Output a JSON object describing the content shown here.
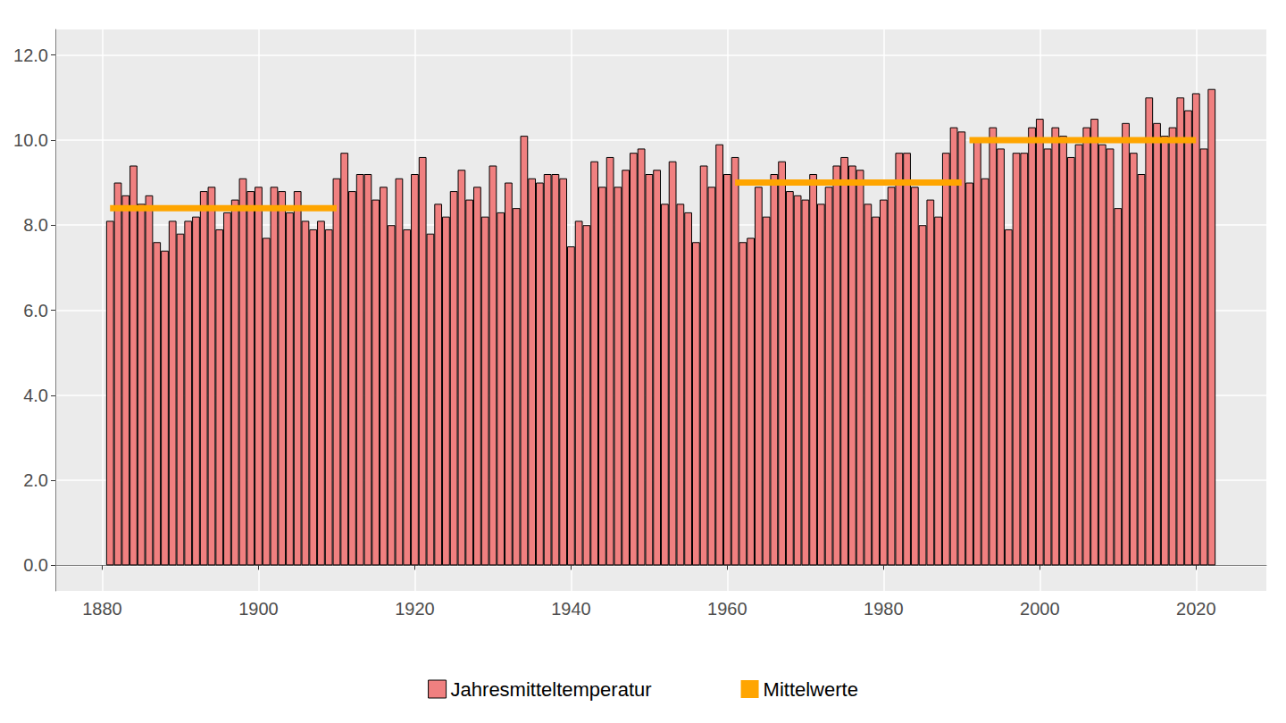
{
  "chart_data": {
    "type": "bar",
    "x": [
      1881,
      1882,
      1883,
      1884,
      1885,
      1886,
      1887,
      1888,
      1889,
      1890,
      1891,
      1892,
      1893,
      1894,
      1895,
      1896,
      1897,
      1898,
      1899,
      1900,
      1901,
      1902,
      1903,
      1904,
      1905,
      1906,
      1907,
      1908,
      1909,
      1910,
      1911,
      1912,
      1913,
      1914,
      1915,
      1916,
      1917,
      1918,
      1919,
      1920,
      1921,
      1922,
      1923,
      1924,
      1925,
      1926,
      1927,
      1928,
      1929,
      1930,
      1931,
      1932,
      1933,
      1934,
      1935,
      1936,
      1937,
      1938,
      1939,
      1940,
      1941,
      1942,
      1943,
      1944,
      1945,
      1946,
      1947,
      1948,
      1949,
      1950,
      1951,
      1952,
      1953,
      1954,
      1955,
      1956,
      1957,
      1958,
      1959,
      1960,
      1961,
      1962,
      1963,
      1964,
      1965,
      1966,
      1967,
      1968,
      1969,
      1970,
      1971,
      1972,
      1973,
      1974,
      1975,
      1976,
      1977,
      1978,
      1979,
      1980,
      1981,
      1982,
      1983,
      1984,
      1985,
      1986,
      1987,
      1988,
      1989,
      1990,
      1991,
      1992,
      1993,
      1994,
      1995,
      1996,
      1997,
      1998,
      1999,
      2000,
      2001,
      2002,
      2003,
      2004,
      2005,
      2006,
      2007,
      2008,
      2009,
      2010,
      2011,
      2012,
      2013,
      2014,
      2015,
      2016,
      2017,
      2018,
      2019,
      2020,
      2021,
      2022
    ],
    "series": [
      {
        "name": "Jahresmitteltemperatur",
        "type": "bar",
        "color": "#F08080",
        "values": [
          8.1,
          9.0,
          8.7,
          9.4,
          8.5,
          8.7,
          7.6,
          7.4,
          8.1,
          7.8,
          8.1,
          8.2,
          8.8,
          8.9,
          7.9,
          8.3,
          8.6,
          9.1,
          8.8,
          8.9,
          7.7,
          8.9,
          8.8,
          8.3,
          8.8,
          8.1,
          7.9,
          8.1,
          7.9,
          9.1,
          9.7,
          8.8,
          9.2,
          9.2,
          8.6,
          8.9,
          8.0,
          9.1,
          7.9,
          9.2,
          9.6,
          7.8,
          8.5,
          8.2,
          8.8,
          9.3,
          8.6,
          8.9,
          8.2,
          9.4,
          8.3,
          9.0,
          8.4,
          10.1,
          9.1,
          9.0,
          9.2,
          9.2,
          9.1,
          7.5,
          8.1,
          8.0,
          9.5,
          8.9,
          9.6,
          8.9,
          9.3,
          9.7,
          9.8,
          9.2,
          9.3,
          8.5,
          9.5,
          8.5,
          8.3,
          7.6,
          9.4,
          8.9,
          9.9,
          9.2,
          9.6,
          7.6,
          7.7,
          8.9,
          8.2,
          9.2,
          9.5,
          8.8,
          8.7,
          8.6,
          9.2,
          8.5,
          8.9,
          9.4,
          9.6,
          9.4,
          9.3,
          8.5,
          8.2,
          8.6,
          8.9,
          9.7,
          9.7,
          8.9,
          8.0,
          8.6,
          8.2,
          9.7,
          10.3,
          10.2,
          9.0,
          10.0,
          9.1,
          10.3,
          9.8,
          7.9,
          9.7,
          9.7,
          10.3,
          10.5,
          9.8,
          10.3,
          10.1,
          9.6,
          9.9,
          10.3,
          10.5,
          9.9,
          9.8,
          8.4,
          10.4,
          9.7,
          9.2,
          11.0,
          10.4,
          10.1,
          10.3,
          11.0,
          10.7,
          11.1,
          9.8,
          11.2
        ]
      },
      {
        "name": "Mittelwerte",
        "type": "line",
        "color": "#FFA500",
        "x": [
          1881,
          1910,
          null,
          1961,
          1990,
          null,
          1991,
          2020
        ],
        "values": [
          8.4,
          8.4,
          null,
          9.0,
          9.0,
          null,
          10.0,
          10.0
        ]
      }
    ],
    "xlim": [
      1874,
      2029
    ],
    "xticks": [
      1880,
      1900,
      1920,
      1940,
      1960,
      1980,
      2000,
      2020
    ],
    "ylim": [
      -0.6,
      12.6
    ],
    "yticks": [
      {
        "value": 0,
        "label": "0.0"
      },
      {
        "value": 2,
        "label": "2.0"
      },
      {
        "value": 4,
        "label": "4.0"
      },
      {
        "value": 6,
        "label": "6.0"
      },
      {
        "value": 8,
        "label": "8.0"
      },
      {
        "value": 10,
        "label": "10.0"
      },
      {
        "value": 12,
        "label": "12.0"
      }
    ],
    "grid": true,
    "legend": "bottom"
  }
}
